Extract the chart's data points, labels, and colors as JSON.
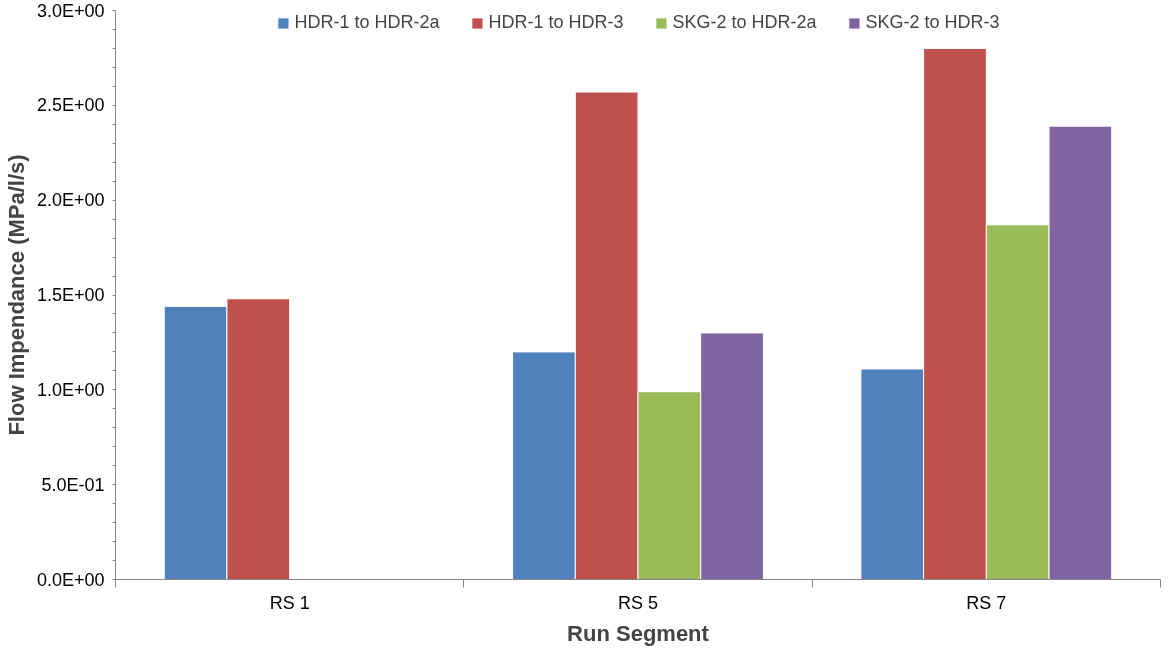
{
  "chart_data": {
    "type": "bar",
    "xlabel": "Run Segment",
    "ylabel": "Flow Impendance (MPa/l/s)",
    "categories": [
      "RS 1",
      "RS 5",
      "RS 7"
    ],
    "series": [
      {
        "name": "HDR-1 to HDR-2a",
        "color": "#4f81bd",
        "values": [
          1.44,
          1.2,
          1.11
        ]
      },
      {
        "name": "HDR-1 to HDR-3",
        "color": "#c0504d",
        "values": [
          1.48,
          2.57,
          2.8
        ]
      },
      {
        "name": "SKG-2 to HDR-2a",
        "color": "#9bbb59",
        "values": [
          null,
          0.99,
          1.87
        ]
      },
      {
        "name": "SKG-2 to HDR-3",
        "color": "#8064a2",
        "values": [
          null,
          1.3,
          2.39
        ]
      }
    ],
    "ylim": [
      0,
      3
    ],
    "yticks": [
      {
        "value": 0,
        "label": "0.0E+00"
      },
      {
        "value": 0.5,
        "label": "5.0E-01"
      },
      {
        "value": 1,
        "label": "1.0E+00"
      },
      {
        "value": 1.5,
        "label": "1.5E+00"
      },
      {
        "value": 2,
        "label": "2.0E+00"
      },
      {
        "value": 2.5,
        "label": "2.5E+00"
      },
      {
        "value": 3,
        "label": "3.0E+00"
      }
    ],
    "grid": false,
    "legend": "top"
  }
}
